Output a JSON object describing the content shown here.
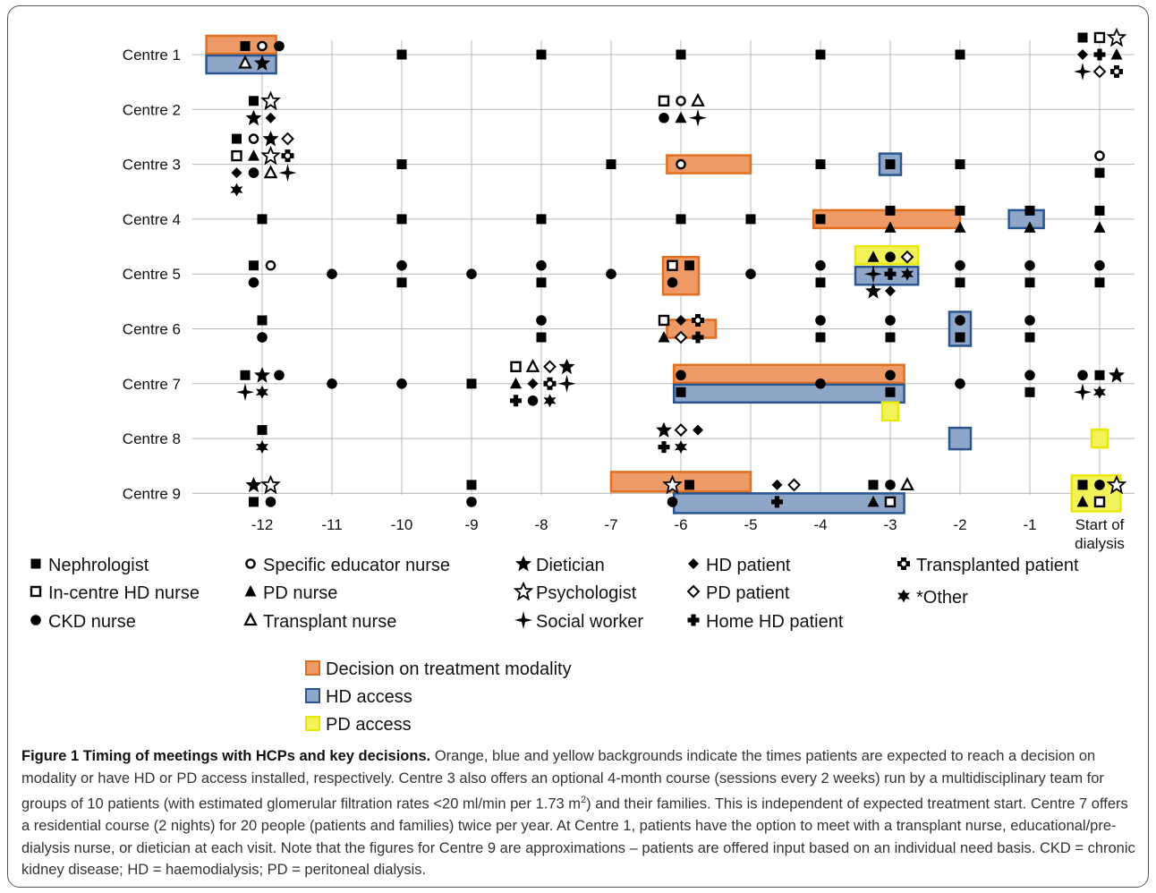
{
  "chart_data": {
    "type": "scatter",
    "title": "",
    "xlabel": "",
    "ylabel": "",
    "x_ticks": [
      "-12",
      "-11",
      "-10",
      "-9",
      "-8",
      "-7",
      "-6",
      "-5",
      "-4",
      "-3",
      "-2",
      "-1",
      "Start of dialysis"
    ],
    "xlim": [
      -12.8,
      -0.2
    ],
    "centres": [
      "Centre 1",
      "Centre 2",
      "Centre 3",
      "Centre 4",
      "Centre 5",
      "Centre 6",
      "Centre 7",
      "Centre 8",
      "Centre 9"
    ],
    "grid": true,
    "legend_position": "bottom",
    "legend": [
      {
        "key": "nephrologist",
        "label": "Nephrologist"
      },
      {
        "key": "incentre_hd_nurse",
        "label": "In-centre HD nurse"
      },
      {
        "key": "ckd_nurse",
        "label": "CKD nurse"
      },
      {
        "key": "educator_nurse",
        "label": "Specific educator nurse"
      },
      {
        "key": "pd_nurse",
        "label": "PD nurse"
      },
      {
        "key": "transplant_nurse",
        "label": "Transplant nurse"
      },
      {
        "key": "dietician",
        "label": "Dietician"
      },
      {
        "key": "psychologist",
        "label": "Psychologist"
      },
      {
        "key": "social_worker",
        "label": "Social worker"
      },
      {
        "key": "hd_patient",
        "label": "HD patient"
      },
      {
        "key": "pd_patient",
        "label": "PD patient"
      },
      {
        "key": "home_hd_patient",
        "label": "Home HD patient"
      },
      {
        "key": "transplanted_patient",
        "label": "Transplanted patient"
      },
      {
        "key": "other",
        "label": "*Other"
      }
    ],
    "shading_legend": [
      {
        "key": "decision",
        "label": "Decision on treatment modality",
        "color": "#ed9a66",
        "border": "#e07020"
      },
      {
        "key": "hd_access",
        "label": "HD access",
        "color": "#8ea6c8",
        "border": "#2a5690"
      },
      {
        "key": "pd_access",
        "label": "PD access",
        "color": "#f2f25a",
        "border": "#e8e800"
      }
    ],
    "shaded_periods": [
      {
        "centre": "Centre 1",
        "type": "decision",
        "x": [
          -12.8,
          -11.8
        ]
      },
      {
        "centre": "Centre 1",
        "type": "hd_access",
        "x": [
          -12.8,
          -11.8
        ]
      },
      {
        "centre": "Centre 3",
        "type": "decision",
        "x": [
          -6.2,
          -5.0
        ]
      },
      {
        "centre": "Centre 3",
        "type": "hd_access",
        "x": [
          -3.0,
          -3.0
        ]
      },
      {
        "centre": "Centre 4",
        "type": "decision",
        "x": [
          -4.1,
          -2.0
        ]
      },
      {
        "centre": "Centre 4",
        "type": "hd_access",
        "x": [
          -1.3,
          -0.8
        ]
      },
      {
        "centre": "Centre 5",
        "type": "pd_access",
        "x": [
          -3.5,
          -2.6
        ]
      },
      {
        "centre": "Centre 5",
        "type": "hd_access",
        "x": [
          -3.5,
          -2.6
        ]
      },
      {
        "centre": "Centre 5",
        "type": "decision",
        "x": [
          -6.0,
          -6.0
        ]
      },
      {
        "centre": "Centre 6",
        "type": "decision",
        "x": [
          -6.2,
          -5.5
        ]
      },
      {
        "centre": "Centre 6",
        "type": "hd_access",
        "x": [
          -2.0,
          -2.0
        ]
      },
      {
        "centre": "Centre 7",
        "type": "decision",
        "x": [
          -6.1,
          -2.8
        ]
      },
      {
        "centre": "Centre 7",
        "type": "hd_access",
        "x": [
          -6.1,
          -2.8
        ]
      },
      {
        "centre": "Centre 7",
        "type": "pd_access",
        "x": [
          -3.0,
          -3.0
        ]
      },
      {
        "centre": "Centre 8",
        "type": "hd_access",
        "x": [
          -2.0,
          -2.0
        ]
      },
      {
        "centre": "Centre 8",
        "type": "pd_access",
        "x": [
          0,
          0
        ]
      },
      {
        "centre": "Centre 9",
        "type": "decision",
        "x": [
          -7.0,
          -5.0
        ]
      },
      {
        "centre": "Centre 9",
        "type": "hd_access",
        "x": [
          -6.1,
          -2.8
        ]
      },
      {
        "centre": "Centre 9",
        "type": "pd_access",
        "x": [
          -0.4,
          0.3
        ]
      }
    ],
    "meetings": [
      {
        "centre": "Centre 1",
        "x": -12,
        "hcps": [
          "nephrologist",
          "educator_nurse",
          "ckd_nurse",
          "transplant_nurse",
          "dietician"
        ]
      },
      {
        "centre": "Centre 1",
        "x": -10,
        "hcps": [
          "nephrologist"
        ]
      },
      {
        "centre": "Centre 1",
        "x": -8,
        "hcps": [
          "nephrologist"
        ]
      },
      {
        "centre": "Centre 1",
        "x": -6,
        "hcps": [
          "nephrologist"
        ]
      },
      {
        "centre": "Centre 1",
        "x": -4,
        "hcps": [
          "nephrologist"
        ]
      },
      {
        "centre": "Centre 1",
        "x": -2,
        "hcps": [
          "nephrologist"
        ]
      },
      {
        "centre": "Centre 1",
        "x": 0,
        "hcps": [
          "nephrologist",
          "incentre_hd_nurse",
          "psychologist",
          "hd_patient",
          "home_hd_patient",
          "pd_nurse",
          "social_worker",
          "pd_patient",
          "transplanted_patient"
        ]
      },
      {
        "centre": "Centre 2",
        "x": -12,
        "hcps": [
          "nephrologist",
          "psychologist",
          "dietician",
          "hd_patient"
        ]
      },
      {
        "centre": "Centre 2",
        "x": -6,
        "hcps": [
          "incentre_hd_nurse",
          "educator_nurse",
          "transplant_nurse",
          "ckd_nurse",
          "pd_nurse",
          "social_worker"
        ]
      },
      {
        "centre": "Centre 3",
        "x": -12,
        "hcps": [
          "nephrologist",
          "educator_nurse",
          "dietician",
          "pd_patient",
          "incentre_hd_nurse",
          "pd_nurse",
          "psychologist",
          "transplanted_patient",
          "hd_patient",
          "ckd_nurse",
          "transplant_nurse",
          "social_worker",
          "other"
        ]
      },
      {
        "centre": "Centre 3",
        "x": -10,
        "hcps": [
          "nephrologist"
        ]
      },
      {
        "centre": "Centre 3",
        "x": -7,
        "hcps": [
          "nephrologist"
        ]
      },
      {
        "centre": "Centre 3",
        "x": -6,
        "hcps": [
          "educator_nurse"
        ]
      },
      {
        "centre": "Centre 3",
        "x": -4,
        "hcps": [
          "nephrologist"
        ]
      },
      {
        "centre": "Centre 3",
        "x": -3,
        "hcps": [
          "nephrologist"
        ]
      },
      {
        "centre": "Centre 3",
        "x": -2,
        "hcps": [
          "nephrologist"
        ]
      },
      {
        "centre": "Centre 3",
        "x": 0,
        "hcps": [
          "educator_nurse",
          "nephrologist"
        ]
      },
      {
        "centre": "Centre 4",
        "x": -12,
        "hcps": [
          "nephrologist"
        ]
      },
      {
        "centre": "Centre 4",
        "x": -10,
        "hcps": [
          "nephrologist"
        ]
      },
      {
        "centre": "Centre 4",
        "x": -8,
        "hcps": [
          "nephrologist"
        ]
      },
      {
        "centre": "Centre 4",
        "x": -6,
        "hcps": [
          "nephrologist"
        ]
      },
      {
        "centre": "Centre 4",
        "x": -5,
        "hcps": [
          "nephrologist"
        ]
      },
      {
        "centre": "Centre 4",
        "x": -4,
        "hcps": [
          "nephrologist"
        ]
      },
      {
        "centre": "Centre 4",
        "x": -3,
        "hcps": [
          "nephrologist",
          "pd_nurse"
        ]
      },
      {
        "centre": "Centre 4",
        "x": -2,
        "hcps": [
          "nephrologist",
          "pd_nurse"
        ]
      },
      {
        "centre": "Centre 4",
        "x": -1,
        "hcps": [
          "nephrologist",
          "pd_nurse"
        ]
      },
      {
        "centre": "Centre 4",
        "x": 0,
        "hcps": [
          "nephrologist",
          "pd_nurse"
        ]
      },
      {
        "centre": "Centre 5",
        "x": -12,
        "hcps": [
          "nephrologist",
          "educator_nurse",
          "ckd_nurse"
        ]
      },
      {
        "centre": "Centre 5",
        "x": -11,
        "hcps": [
          "ckd_nurse"
        ]
      },
      {
        "centre": "Centre 5",
        "x": -10,
        "hcps": [
          "ckd_nurse",
          "nephrologist"
        ]
      },
      {
        "centre": "Centre 5",
        "x": -9,
        "hcps": [
          "ckd_nurse"
        ]
      },
      {
        "centre": "Centre 5",
        "x": -8,
        "hcps": [
          "ckd_nurse",
          "nephrologist"
        ]
      },
      {
        "centre": "Centre 5",
        "x": -7,
        "hcps": [
          "ckd_nurse"
        ]
      },
      {
        "centre": "Centre 5",
        "x": -6,
        "hcps": [
          "incentre_hd_nurse",
          "nephrologist",
          "ckd_nurse"
        ]
      },
      {
        "centre": "Centre 5",
        "x": -5,
        "hcps": [
          "ckd_nurse"
        ]
      },
      {
        "centre": "Centre 5",
        "x": -4,
        "hcps": [
          "ckd_nurse",
          "nephrologist"
        ]
      },
      {
        "centre": "Centre 5",
        "x": -3,
        "hcps": [
          "pd_nurse",
          "ckd_nurse",
          "pd_patient",
          "social_worker",
          "home_hd_patient",
          "other",
          "dietician",
          "hd_patient"
        ]
      },
      {
        "centre": "Centre 5",
        "x": -2,
        "hcps": [
          "ckd_nurse",
          "nephrologist"
        ]
      },
      {
        "centre": "Centre 5",
        "x": -1,
        "hcps": [
          "ckd_nurse",
          "nephrologist"
        ]
      },
      {
        "centre": "Centre 5",
        "x": 0,
        "hcps": [
          "ckd_nurse",
          "nephrologist"
        ]
      },
      {
        "centre": "Centre 6",
        "x": -12,
        "hcps": [
          "nephrologist",
          "ckd_nurse"
        ]
      },
      {
        "centre": "Centre 6",
        "x": -8,
        "hcps": [
          "ckd_nurse",
          "nephrologist"
        ]
      },
      {
        "centre": "Centre 6",
        "x": -6,
        "hcps": [
          "incentre_hd_nurse",
          "hd_patient",
          "transplanted_patient",
          "pd_nurse",
          "pd_patient",
          "home_hd_patient"
        ]
      },
      {
        "centre": "Centre 6",
        "x": -4,
        "hcps": [
          "ckd_nurse",
          "nephrologist"
        ]
      },
      {
        "centre": "Centre 6",
        "x": -3,
        "hcps": [
          "ckd_nurse",
          "nephrologist"
        ]
      },
      {
        "centre": "Centre 6",
        "x": -2,
        "hcps": [
          "ckd_nurse",
          "nephrologist"
        ]
      },
      {
        "centre": "Centre 6",
        "x": -1,
        "hcps": [
          "ckd_nurse",
          "nephrologist"
        ]
      },
      {
        "centre": "Centre 7",
        "x": -12,
        "hcps": [
          "nephrologist",
          "dietician",
          "ckd_nurse",
          "social_worker",
          "other"
        ]
      },
      {
        "centre": "Centre 7",
        "x": -11,
        "hcps": [
          "ckd_nurse"
        ]
      },
      {
        "centre": "Centre 7",
        "x": -10,
        "hcps": [
          "ckd_nurse"
        ]
      },
      {
        "centre": "Centre 7",
        "x": -9,
        "hcps": [
          "nephrologist"
        ]
      },
      {
        "centre": "Centre 7",
        "x": -8,
        "hcps": [
          "incentre_hd_nurse",
          "transplant_nurse",
          "pd_patient",
          "dietician",
          "pd_nurse",
          "hd_patient",
          "transplanted_patient",
          "social_worker",
          "home_hd_patient",
          "ckd_nurse",
          "other"
        ]
      },
      {
        "centre": "Centre 7",
        "x": -6,
        "hcps": [
          "ckd_nurse",
          "nephrologist"
        ]
      },
      {
        "centre": "Centre 7",
        "x": -4,
        "hcps": [
          "ckd_nurse"
        ]
      },
      {
        "centre": "Centre 7",
        "x": -3,
        "hcps": [
          "ckd_nurse",
          "nephrologist"
        ]
      },
      {
        "centre": "Centre 7",
        "x": -2,
        "hcps": [
          "ckd_nurse"
        ]
      },
      {
        "centre": "Centre 7",
        "x": -1,
        "hcps": [
          "ckd_nurse",
          "nephrologist"
        ]
      },
      {
        "centre": "Centre 7",
        "x": 0,
        "hcps": [
          "ckd_nurse",
          "nephrologist",
          "dietician",
          "social_worker",
          "other"
        ]
      },
      {
        "centre": "Centre 8",
        "x": -12,
        "hcps": [
          "nephrologist",
          "other"
        ]
      },
      {
        "centre": "Centre 8",
        "x": -6,
        "hcps": [
          "dietician",
          "pd_patient",
          "hd_patient",
          "home_hd_patient",
          "other"
        ]
      },
      {
        "centre": "Centre 9",
        "x": -12,
        "hcps": [
          "dietician",
          "psychologist",
          "nephrologist",
          "ckd_nurse"
        ]
      },
      {
        "centre": "Centre 9",
        "x": -9,
        "hcps": [
          "nephrologist",
          "ckd_nurse"
        ]
      },
      {
        "centre": "Centre 9",
        "x": -6,
        "hcps": [
          "psychologist",
          "nephrologist",
          "ckd_nurse"
        ]
      },
      {
        "centre": "Centre 9",
        "x": -4.5,
        "hcps": [
          "hd_patient",
          "pd_patient",
          "home_hd_patient"
        ]
      },
      {
        "centre": "Centre 9",
        "x": -3,
        "hcps": [
          "nephrologist",
          "ckd_nurse",
          "transplant_nurse",
          "pd_nurse",
          "incentre_hd_nurse"
        ]
      },
      {
        "centre": "Centre 9",
        "x": 0,
        "hcps": [
          "nephrologist",
          "ckd_nurse",
          "psychologist",
          "pd_nurse",
          "incentre_hd_nurse"
        ]
      }
    ]
  },
  "caption": {
    "title": "Figure 1 Timing of meetings with HCPs and key decisions.",
    "text_1": "Orange, blue and yellow backgrounds indicate the times patients are expected to reach a decision on modality or have HD or PD access installed, respectively. Centre 3 also offers an optional 4-month course (sessions every 2 weeks) run by a multidisciplinary team for groups of 10 patients (with estimated glomerular filtration rates <20 ml/min per 1.73 m",
    "superscript": "2",
    "text_2": ") and their families. This is independent of expected treatment start. Centre 7 offers a residential course (2 nights) for 20 people (patients and families) twice per year. At Centre 1, patients have the option to meet with a transplant nurse, educational/pre-dialysis nurse, or dietician at each visit. Note that the figures for Centre 9 are approximations – patients are offered input based on an individual need basis. CKD = chronic kidney disease; HD = haemodialysis; PD = peritoneal dialysis."
  }
}
